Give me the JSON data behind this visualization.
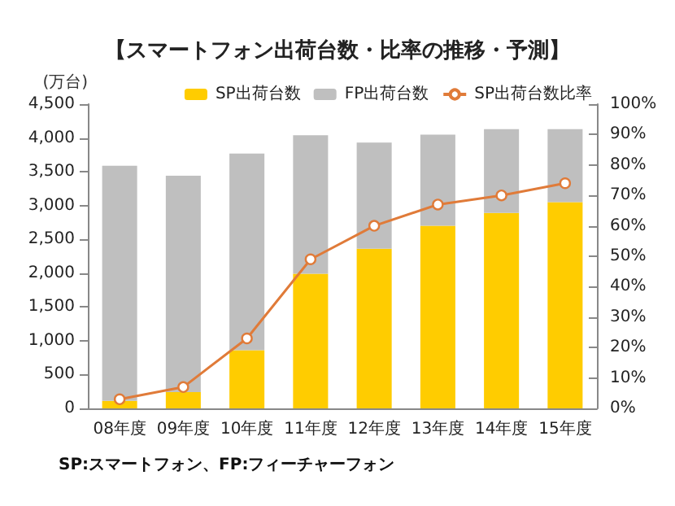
{
  "chart_data": {
    "type": "bar",
    "title": "【スマートフォン出荷台数・比率の推移・予測】",
    "ylabel": "(万台)",
    "stacked": true,
    "categories": [
      "08年度",
      "09年度",
      "10年度",
      "11年度",
      "12年度",
      "13年度",
      "14年度",
      "15年度"
    ],
    "series": [
      {
        "name": "SP出荷台数",
        "color": "#ffcc00",
        "values": [
          110,
          240,
          860,
          1990,
          2360,
          2700,
          2890,
          3050
        ]
      },
      {
        "name": "FP出荷台数",
        "color": "#bfbfbf",
        "values": [
          3480,
          3200,
          2910,
          2050,
          1570,
          1350,
          1240,
          1080
        ]
      },
      {
        "name": "SP出荷台数比率",
        "type": "line",
        "axis": "y2",
        "color": "#e07b39",
        "marker": "circle",
        "values": [
          3,
          7,
          23,
          49,
          60,
          67,
          70,
          74
        ]
      }
    ],
    "ylim": [
      0,
      4500
    ],
    "yticks": [
      0,
      {
        "value": 500,
        "label": "500"
      },
      {
        "value": 1000,
        "label": "1,000"
      },
      {
        "value": 1500,
        "label": "1,500"
      },
      {
        "value": 2000,
        "label": "2,000"
      },
      {
        "value": 2500,
        "label": "2,500"
      },
      {
        "value": 3000,
        "label": "3,000"
      },
      {
        "value": 3500,
        "label": "3,500"
      },
      {
        "value": 4000,
        "label": "4,000"
      },
      {
        "value": 4500,
        "label": "4,500"
      }
    ],
    "y2lim": [
      0,
      100
    ],
    "y2ticks": [
      {
        "value": 0,
        "label": "0%"
      },
      {
        "value": 10,
        "label": "10%"
      },
      {
        "value": 20,
        "label": "20%"
      },
      {
        "value": 30,
        "label": "30%"
      },
      {
        "value": 40,
        "label": "40%"
      },
      {
        "value": 50,
        "label": "50%"
      },
      {
        "value": 60,
        "label": "60%"
      },
      {
        "value": 70,
        "label": "70%"
      },
      {
        "value": 80,
        "label": "80%"
      },
      {
        "value": 90,
        "label": "90%"
      },
      {
        "value": 100,
        "label": "100%"
      }
    ],
    "grid": false,
    "legend": "top right",
    "annotations": [
      "SP:スマートフォン、FP:フィーチャーフォン"
    ]
  }
}
